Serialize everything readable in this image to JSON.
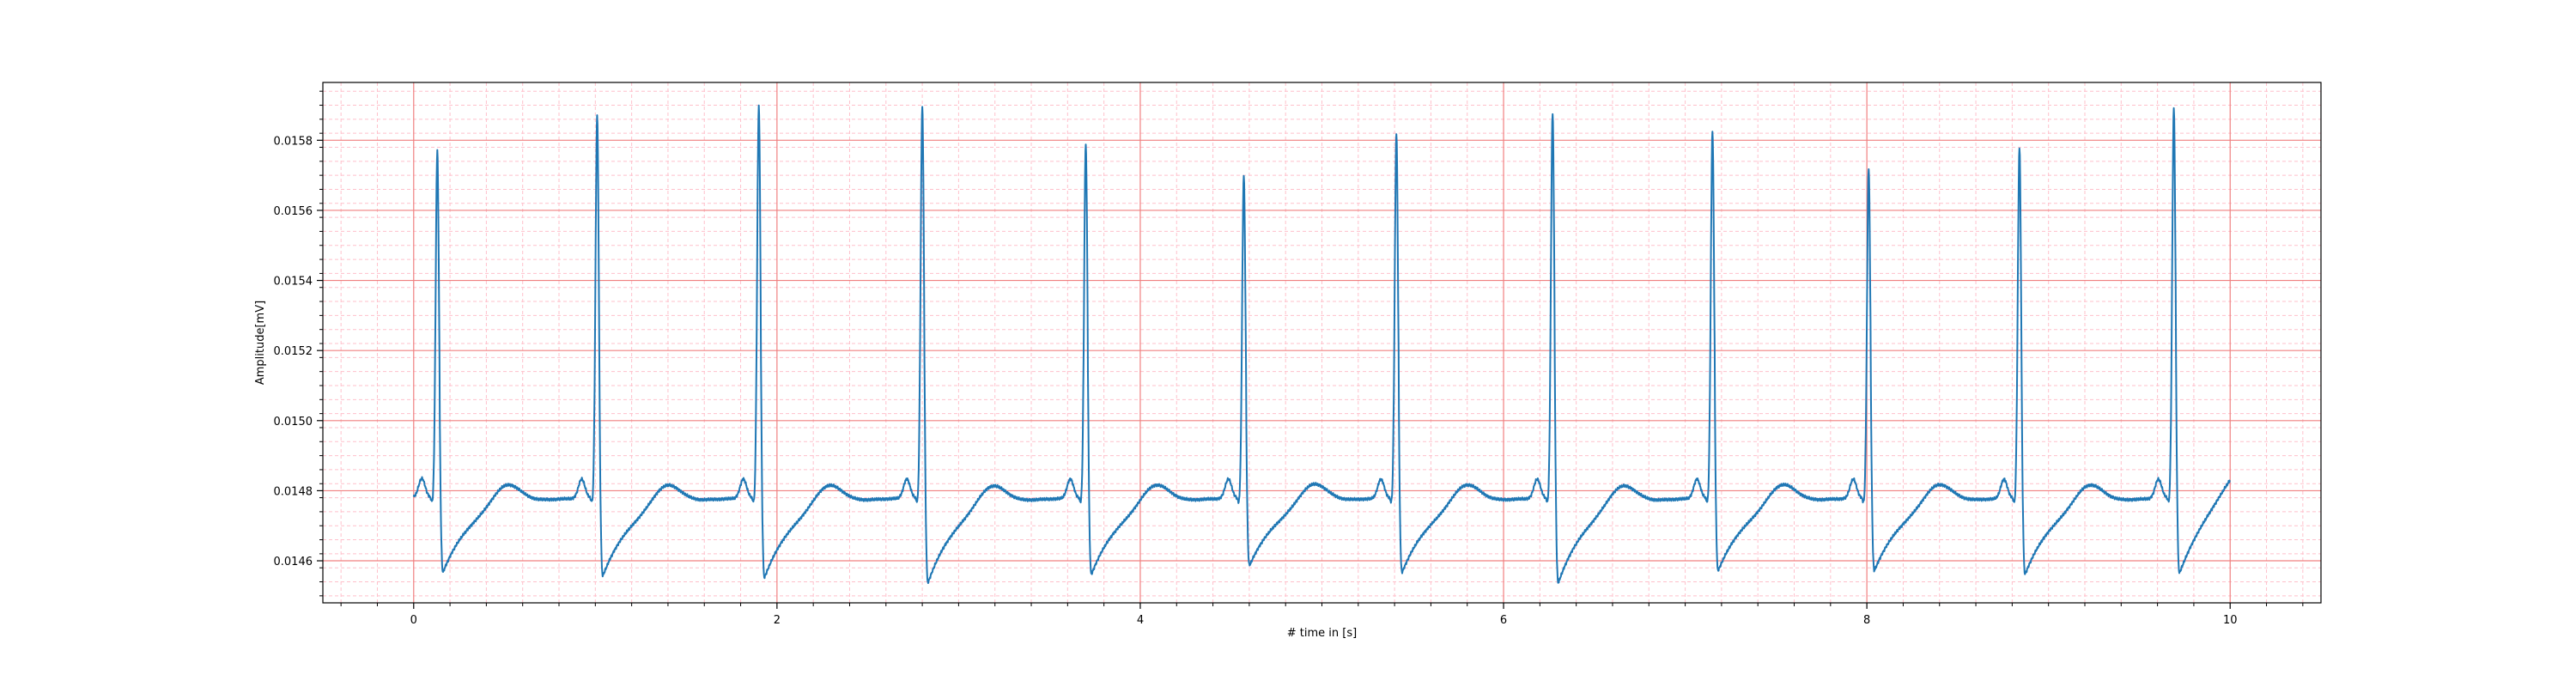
{
  "chart_data": {
    "type": "line",
    "title": "",
    "xlabel": "# time in [s]",
    "ylabel": "Amplitude[mV]",
    "xlim": [
      -0.5,
      10.5
    ],
    "ylim": [
      0.01448,
      0.015965
    ],
    "xticks": [
      0,
      2,
      4,
      6,
      8,
      10
    ],
    "xtick_labels": [
      "0",
      "2",
      "4",
      "6",
      "8",
      "10"
    ],
    "yticks": [
      0.0146,
      0.0148,
      0.015,
      0.0152,
      0.0154,
      0.0156,
      0.0158
    ],
    "ytick_labels": [
      "0.0146",
      "0.0148",
      "0.0150",
      "0.0152",
      "0.0154",
      "0.0156",
      "0.0158"
    ],
    "grid": "on",
    "colors": {
      "line": "#1f77b4",
      "major_grid": "#f08080",
      "minor_grid": "#ffc0cb"
    },
    "series": [
      {
        "name": "",
        "baseline": 0.01478,
        "duration": 10.0,
        "beats": [
          {
            "r_time": 0.13,
            "r_peak": 0.01577,
            "trough": 0.014565
          },
          {
            "r_time": 1.01,
            "r_peak": 0.01587,
            "trough": 0.014555
          },
          {
            "r_time": 1.9,
            "r_peak": 0.0159,
            "trough": 0.01455
          },
          {
            "r_time": 2.8,
            "r_peak": 0.0159,
            "trough": 0.014535
          },
          {
            "r_time": 3.7,
            "r_peak": 0.01579,
            "trough": 0.01456
          },
          {
            "r_time": 4.57,
            "r_peak": 0.0157,
            "trough": 0.014585
          },
          {
            "r_time": 5.41,
            "r_peak": 0.01582,
            "trough": 0.014565
          },
          {
            "r_time": 6.27,
            "r_peak": 0.01588,
            "trough": 0.014535
          },
          {
            "r_time": 7.15,
            "r_peak": 0.01583,
            "trough": 0.01457
          },
          {
            "r_time": 8.01,
            "r_peak": 0.01572,
            "trough": 0.01457
          },
          {
            "r_time": 8.84,
            "r_peak": 0.01578,
            "trough": 0.01456
          },
          {
            "r_time": 9.69,
            "r_peak": 0.01589,
            "trough": 0.01456
          }
        ],
        "end_value": 0.01483
      }
    ]
  }
}
